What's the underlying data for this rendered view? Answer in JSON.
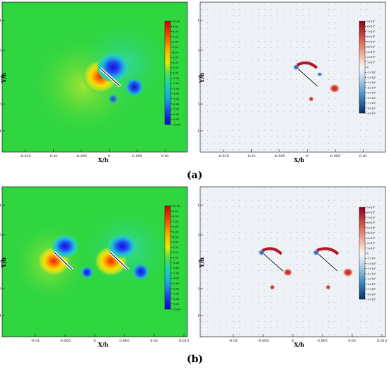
{
  "figure": {
    "panels": [
      {
        "id": "a-left",
        "xlabel": "X/h",
        "ylabel": "Y/h",
        "xticks": [
          "-0.015",
          "-0.01",
          "-0.005",
          "0",
          "0.005",
          "0.01"
        ],
        "yticks": [
          "0.01",
          "0.005",
          "0",
          "-0.005",
          "-0.01"
        ],
        "legend_ticks": [
          "10.00",
          "9.00",
          "8.00",
          "7.00",
          "6.00",
          "5.00",
          "4.00",
          "3.00",
          "2.00",
          "1.00",
          "0.00",
          "-1.00",
          "-2.00",
          "-3.00",
          "-4.00",
          "-5.00",
          "-6.00",
          "-7.00",
          "-8.00",
          "-9.00",
          "-10.00"
        ]
      },
      {
        "id": "a-right",
        "xlabel": "X/h",
        "ylabel": "Y/h",
        "xticks": [
          "-0.015",
          "-0.01",
          "-0.005",
          "0",
          "0.005",
          "0.01"
        ],
        "yticks": [
          "0.01",
          "0.005",
          "0",
          "-0.005",
          "-0.01"
        ],
        "legend_ticks": [
          "9×10⁶",
          "8×10⁶",
          "7×10⁶",
          "6×10⁶",
          "5×10⁶",
          "4×10⁶",
          "3×10⁶",
          "2×10⁶",
          "1×10⁶",
          "0",
          "-1×10⁶",
          "-2×10⁶",
          "-3×10⁶",
          "-4×10⁶",
          "-5×10⁶",
          "-6×10⁶",
          "-7×10⁶",
          "-8×10⁶",
          "-9×10⁶"
        ]
      },
      {
        "id": "b-left",
        "xlabel": "X/h",
        "ylabel": "Y/h",
        "xticks": [
          "-0.01",
          "-0.005",
          "0",
          "0.005",
          "0.01",
          "0.015"
        ],
        "yticks": [
          "0.01",
          "0.005",
          "0",
          "-0.005",
          "-0.01"
        ],
        "legend_ticks": [
          "10.00",
          "9.00",
          "8.00",
          "7.00",
          "6.00",
          "5.00",
          "4.00",
          "3.00",
          "2.00",
          "1.00",
          "0.00",
          "-1.00",
          "-2.00",
          "-3.00",
          "-4.00",
          "-5.00",
          "-6.00",
          "-7.00",
          "-8.00",
          "-9.00",
          "-10.00"
        ]
      },
      {
        "id": "b-right",
        "xlabel": "X/h",
        "ylabel": "Y/h",
        "xticks": [
          "-0.01",
          "-0.005",
          "0",
          "0.005",
          "0.01",
          "0.015"
        ],
        "yticks": [
          "0.01",
          "0.005",
          "0",
          "-0.005",
          "-0.01"
        ],
        "legend_ticks": [
          "9×10⁶",
          "8×10⁶",
          "7×10⁶",
          "6×10⁶",
          "5×10⁶",
          "4×10⁶",
          "3×10⁶",
          "2×10⁶",
          "1×10⁶",
          "0",
          "-1×10⁶",
          "-2×10⁶",
          "-3×10⁶",
          "-4×10⁶",
          "-5×10⁶",
          "-6×10⁶",
          "-7×10⁶",
          "-8×10⁶",
          "-9×10⁶"
        ]
      }
    ],
    "captions": [
      "(a)",
      "(b)"
    ]
  },
  "colors": {
    "pressure_field": "#2fd640",
    "vorticity_field": "#eef1f6"
  }
}
